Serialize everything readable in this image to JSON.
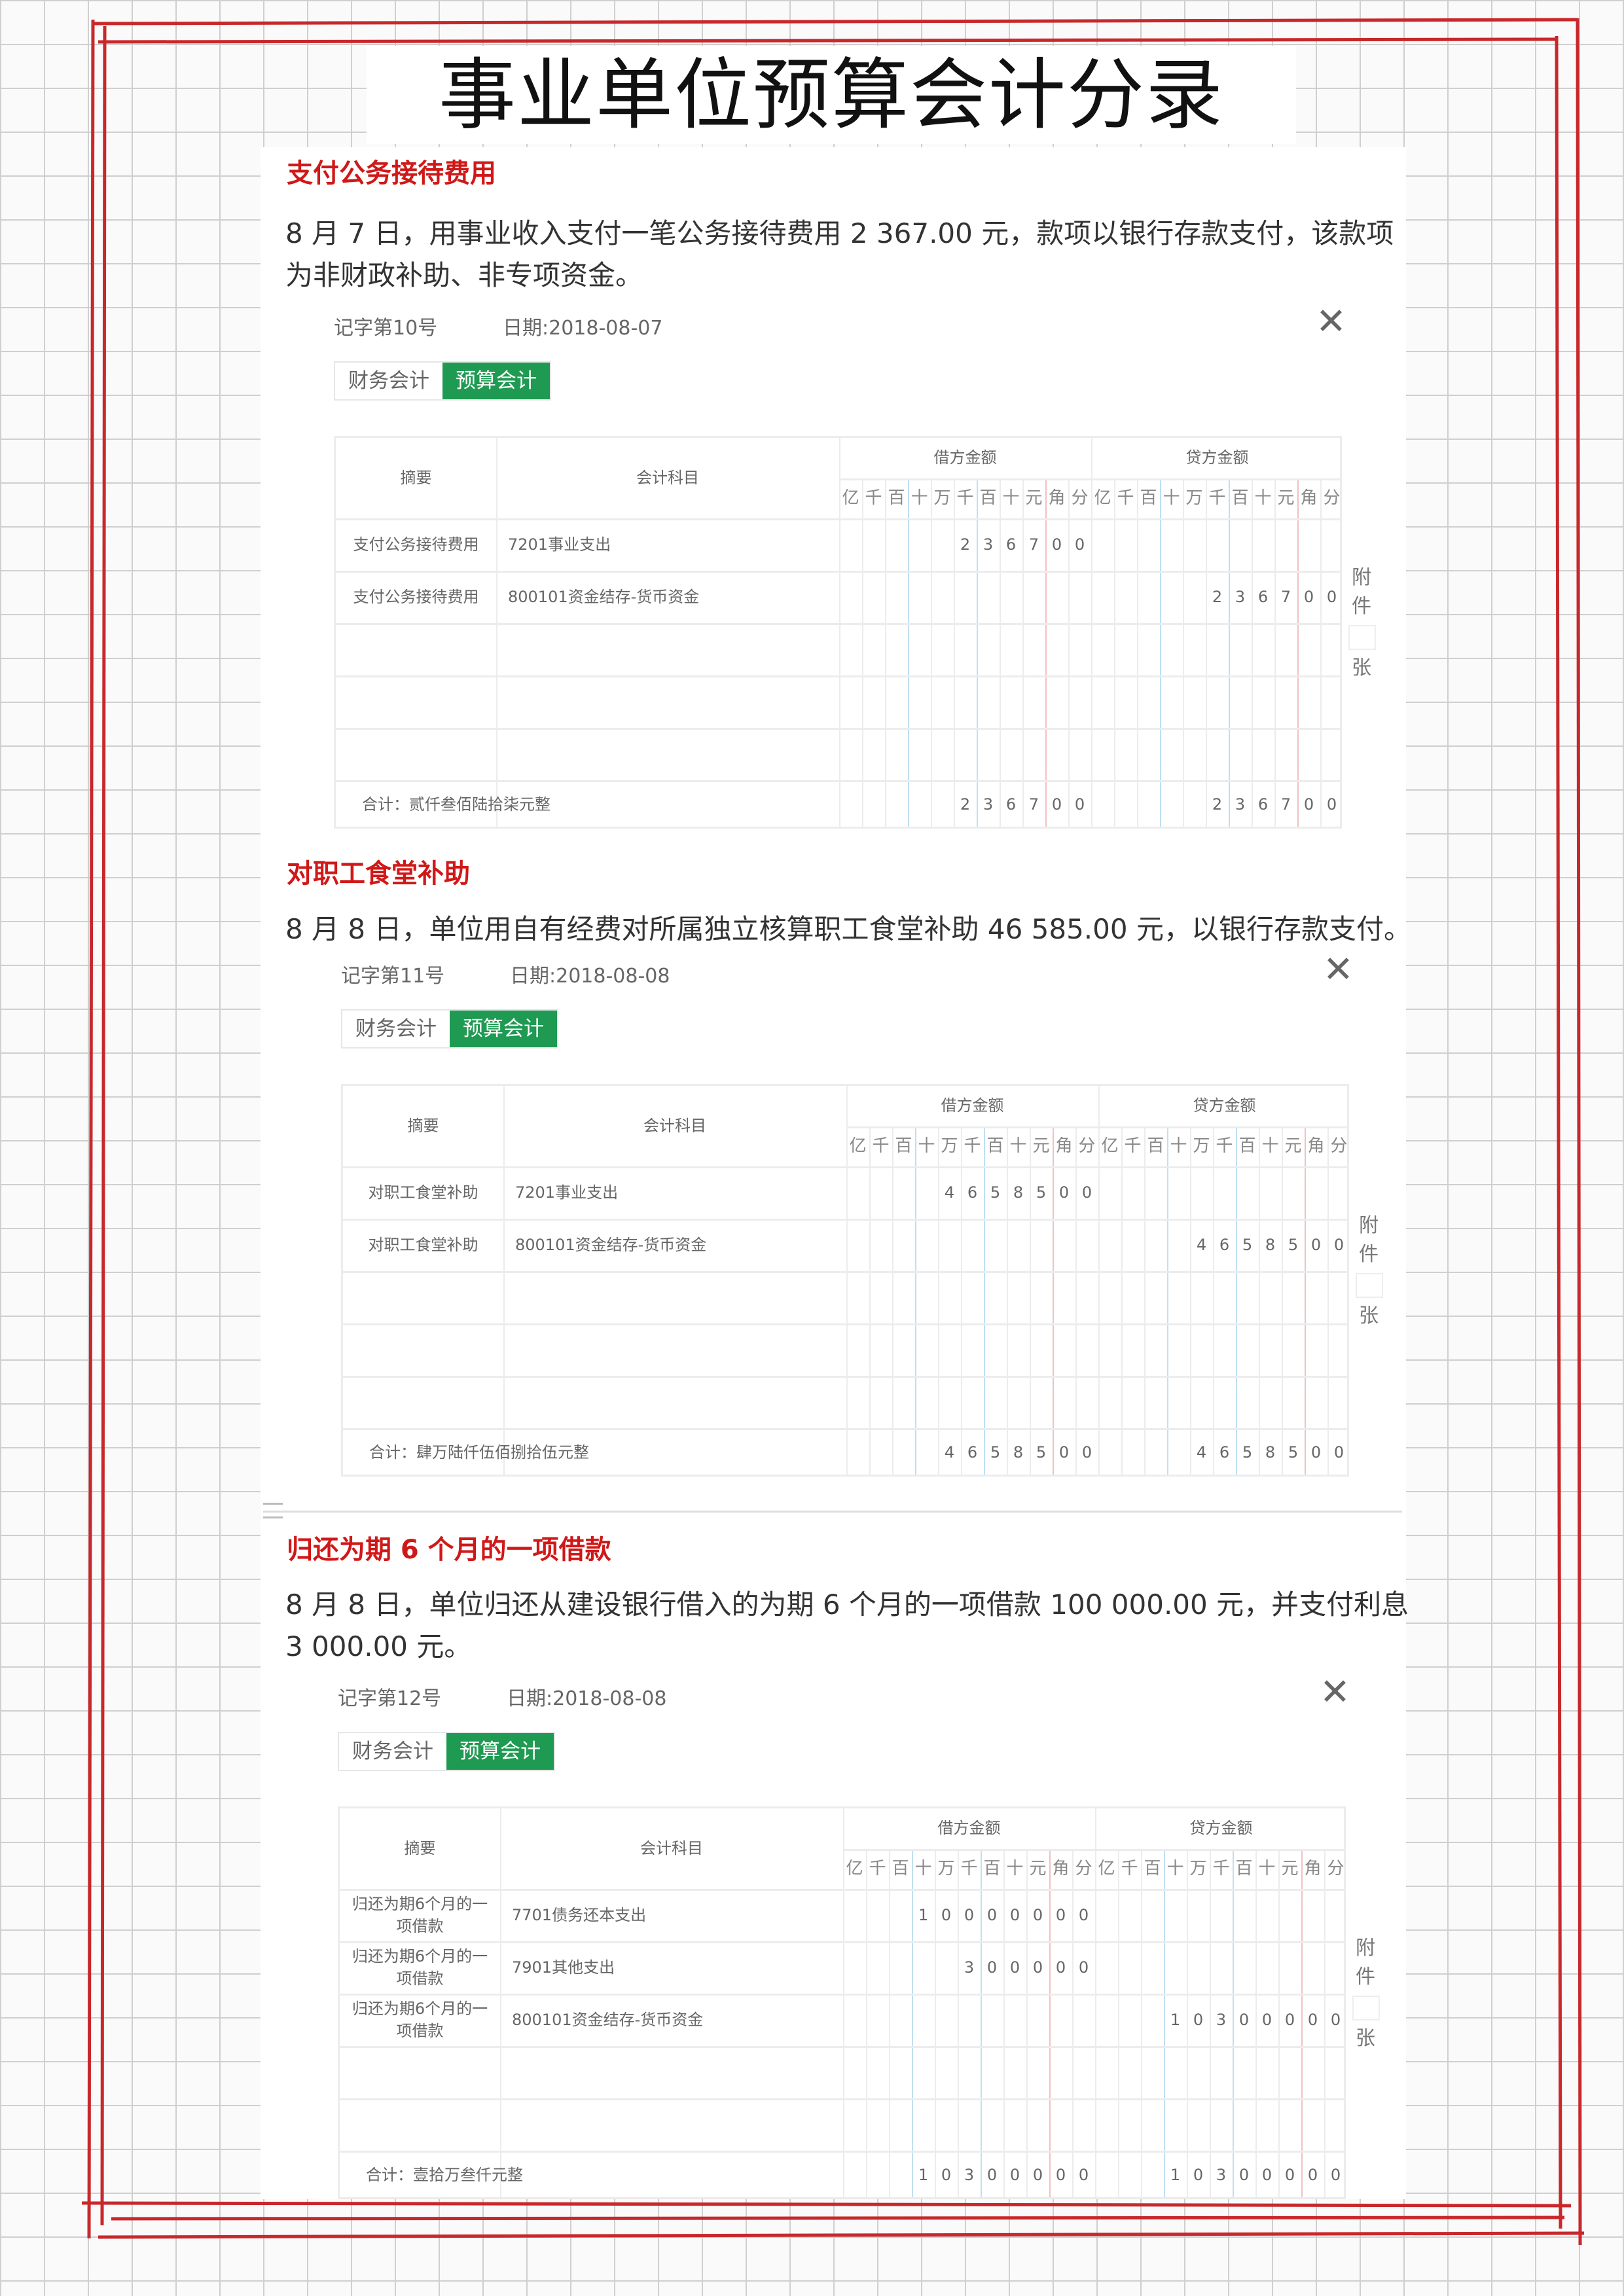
{
  "title": "事业单位预算会计分录",
  "digit_units": [
    "亿",
    "千",
    "百",
    "十",
    "万",
    "千",
    "百",
    "十",
    "元",
    "角",
    "分"
  ],
  "table_headers": {
    "summary": "摘要",
    "account": "会计科目",
    "debit": "借方金额",
    "credit": "贷方金额"
  },
  "attachment": {
    "line1": "附",
    "line2": "件",
    "unit": "张"
  },
  "tabs": {
    "financial": "财务会计",
    "budget": "预算会计"
  },
  "close_icon": "close-x-icon",
  "colors": {
    "heading": "#d01818",
    "tab_active": "#1f9a52",
    "frame": "#c8282b"
  },
  "sections": [
    {
      "heading": "支付公务接待费用",
      "paragraph": [
        "8 月 7 日，用事业收入支付一笔公务接待费用 2 367.00 元，款项以银行存款支付，该款项",
        "为非财政补助、非专项资金。"
      ],
      "voucher_no": "记字第10号",
      "date": "日期:2018-08-07",
      "rows": [
        {
          "summary": [
            "支付公务接待费用"
          ],
          "account": "7201事业支出",
          "debit": "236700",
          "credit": ""
        },
        {
          "summary": [
            "支付公务接待费用"
          ],
          "account": "800101资金结存-货币资金",
          "debit": "",
          "credit": "236700"
        }
      ],
      "total_label": "合计：贰仟叁佰陆拾柒元整",
      "total_debit": "236700",
      "total_credit": "236700"
    },
    {
      "heading": "对职工食堂补助",
      "paragraph": [
        "8 月 8 日，单位用自有经费对所属独立核算职工食堂补助 46 585.00 元，以银行存款支付。"
      ],
      "voucher_no": "记字第11号",
      "date": "日期:2018-08-08",
      "rows": [
        {
          "summary": [
            "对职工食堂补助"
          ],
          "account": "7201事业支出",
          "debit": "4658500",
          "credit": ""
        },
        {
          "summary": [
            "对职工食堂补助"
          ],
          "account": "800101资金结存-货币资金",
          "debit": "",
          "credit": "4658500"
        }
      ],
      "total_label": "合计：肆万陆仟伍佰捌拾伍元整",
      "total_debit": "4658500",
      "total_credit": "4658500"
    },
    {
      "heading": "归还为期 6 个月的一项借款",
      "paragraph": [
        "8 月 8 日，单位归还从建设银行借入的为期 6 个月的一项借款 100 000.00 元，并支付利息",
        "3 000.00 元。"
      ],
      "voucher_no": "记字第12号",
      "date": "日期:2018-08-08",
      "rows": [
        {
          "summary": [
            "归还为期6个月的一",
            "项借款"
          ],
          "account": "7701债务还本支出",
          "debit": "10000000",
          "credit": ""
        },
        {
          "summary": [
            "归还为期6个月的一",
            "项借款"
          ],
          "account": "7901其他支出",
          "debit": "300000",
          "credit": ""
        },
        {
          "summary": [
            "归还为期6个月的一",
            "项借款"
          ],
          "account": "800101资金结存-货币资金",
          "debit": "",
          "credit": "10300000"
        }
      ],
      "total_label": "合计：壹拾万叁仟元整",
      "total_debit": "10300000",
      "total_credit": "10300000"
    }
  ]
}
